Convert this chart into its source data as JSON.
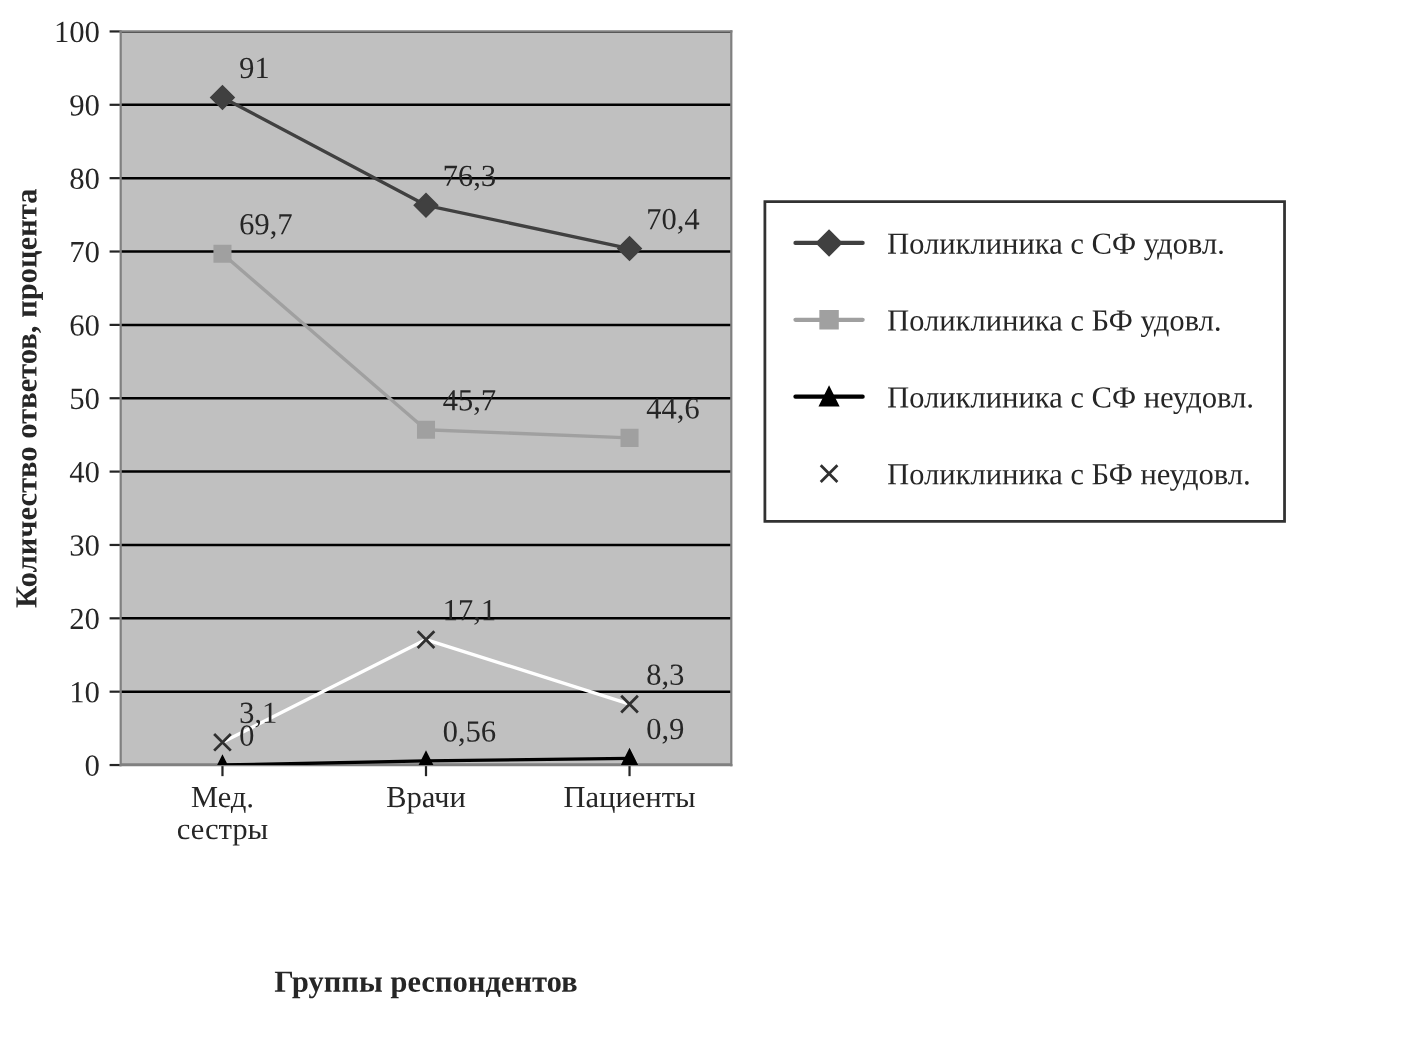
{
  "chart_data": {
    "type": "line",
    "xlabel": "Группы респондентов",
    "ylabel": "Количество ответов, процента",
    "categories": [
      "Мед.\nсестры",
      "Врачи",
      "Пациенты"
    ],
    "series": [
      {
        "name": "Поликлиника с СФ удовл.",
        "color": "#404040",
        "marker": "diamond",
        "values": [
          91,
          76.3,
          70.4
        ],
        "value_labels": [
          "91",
          "76,3",
          "70,4"
        ]
      },
      {
        "name": "Поликлиника с БФ удовл.",
        "color": "#a0a0a0",
        "marker": "square",
        "values": [
          69.7,
          45.7,
          44.6
        ],
        "value_labels": [
          "69,7",
          "45,7",
          "44,6"
        ]
      },
      {
        "name": "Поликлиника с СФ неудовл.",
        "color": "#000000",
        "marker": "triangle",
        "values": [
          0,
          0.56,
          0.9
        ],
        "value_labels": [
          "0",
          "0,56",
          "0,9"
        ]
      },
      {
        "name": "Поликлиника с БФ неудовл.",
        "color": "#ffffff",
        "marker": "cross",
        "values": [
          3.1,
          17.1,
          8.3
        ],
        "value_labels": [
          "3,1",
          "17,1",
          "8,3"
        ]
      }
    ],
    "ylim": [
      0,
      100
    ],
    "yticks": [
      0,
      10,
      20,
      30,
      40,
      50,
      60,
      70,
      80,
      90,
      100
    ],
    "grid": "y",
    "legend": "right"
  }
}
